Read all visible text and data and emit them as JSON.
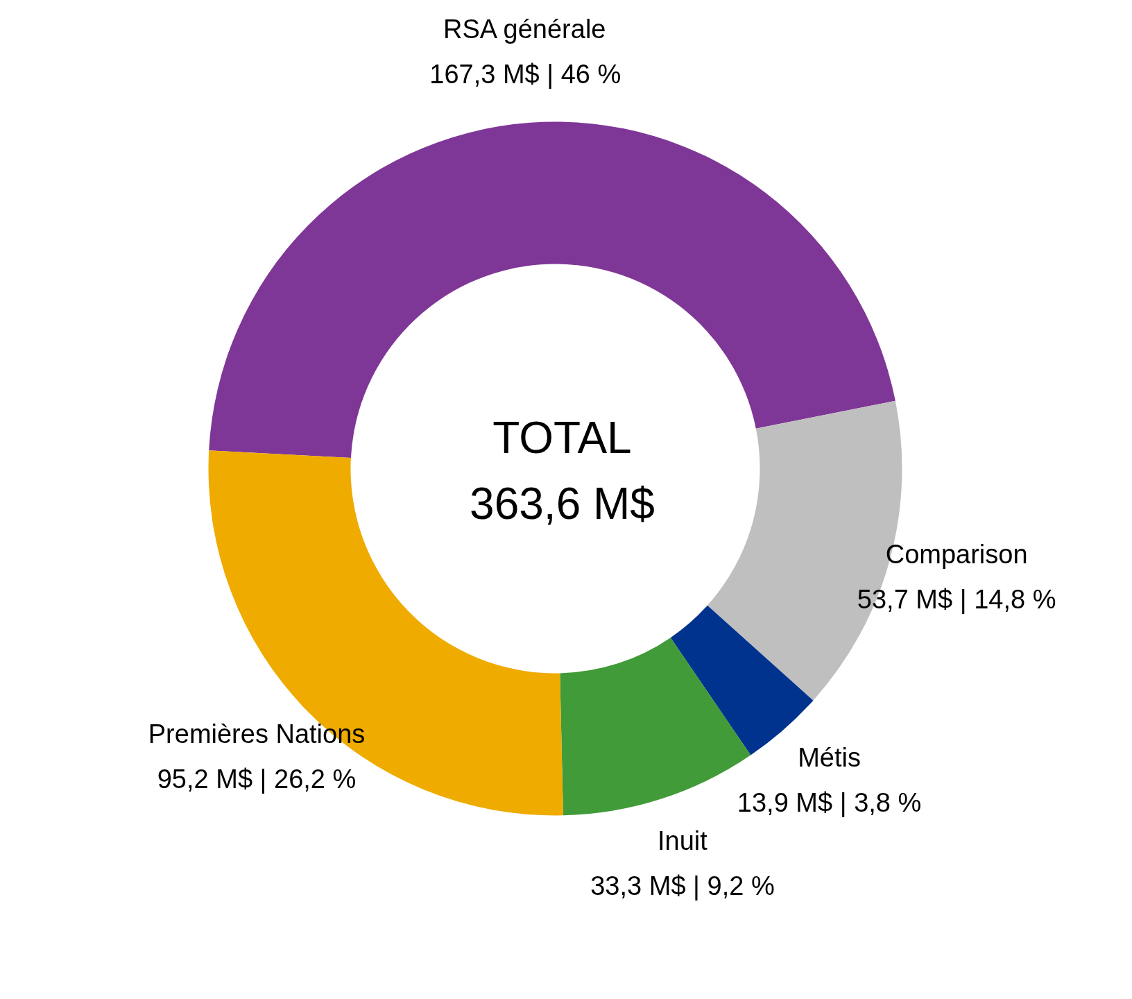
{
  "chart_data": {
    "type": "donut",
    "categories": [
      "RSA générale",
      "Comparison",
      "Métis",
      "Inuit",
      "Premières Nations"
    ],
    "values": [
      167.3,
      53.7,
      13.9,
      33.3,
      95.2
    ],
    "colors": [
      "#7f3797",
      "#bfbfbf",
      "#00338d",
      "#409b38",
      "#efab00"
    ],
    "value_labels": [
      "167,3 M$ | 46 %",
      "53,7 M$ | 14,8 %",
      "13,9 M$ | 3,8 %",
      "33,3 M$ | 9,2 %",
      "95,2 M$ | 26,2 %"
    ],
    "annotations": [
      "TOTAL",
      "363,6 M$"
    ]
  }
}
